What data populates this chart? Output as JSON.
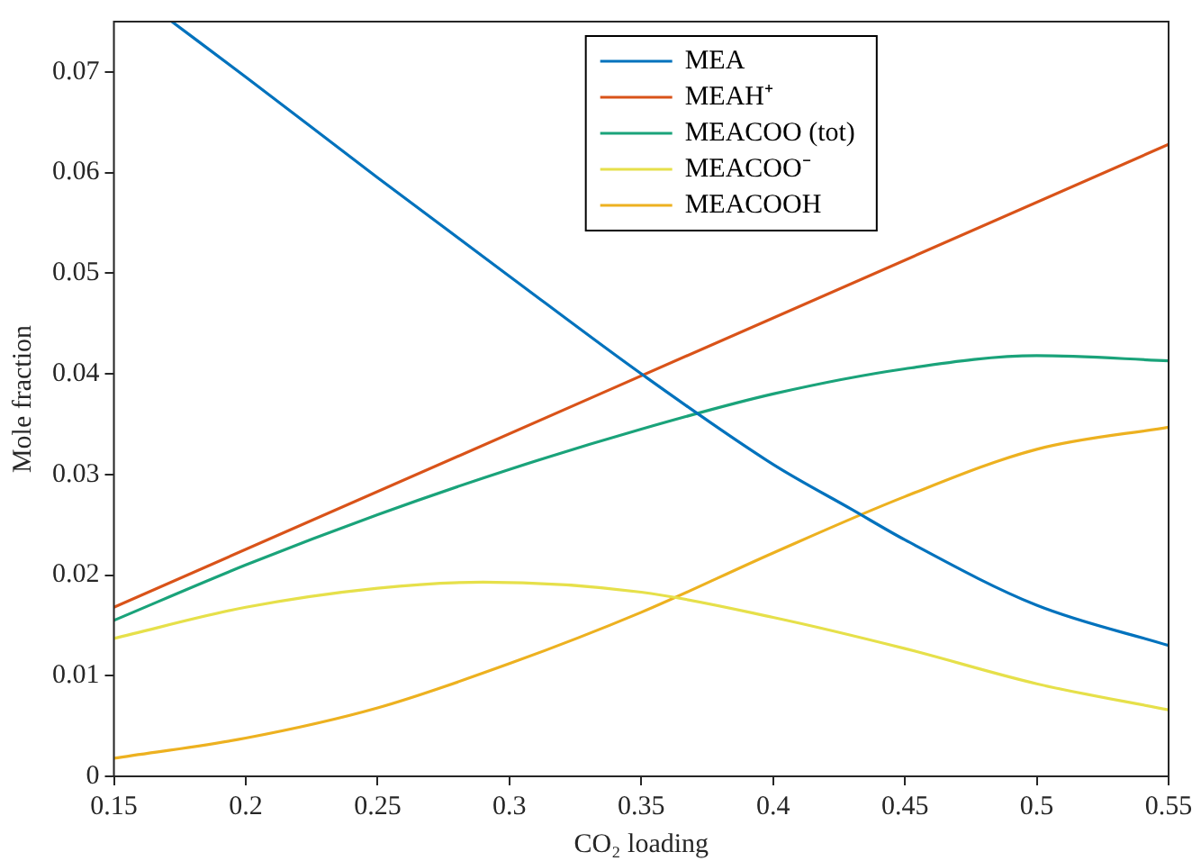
{
  "chart_data": {
    "type": "line",
    "xlabel": "CO₂ loading",
    "ylabel": "Mole fraction",
    "xlim": [
      0.15,
      0.55
    ],
    "xticks": [
      0.15,
      0.2,
      0.25,
      0.3,
      0.35,
      0.4,
      0.45,
      0.5,
      0.55
    ],
    "ylim": [
      0,
      0.075
    ],
    "yticks": [
      0,
      0.01,
      0.02,
      0.03,
      0.04,
      0.05,
      0.06,
      0.07
    ],
    "grid": false,
    "legend": "top",
    "marker": "none",
    "line_style": "solid",
    "series": [
      {
        "name": "MEA",
        "color": "#0072bd",
        "x": [
          0.172,
          0.2,
          0.25,
          0.3,
          0.35,
          0.4,
          0.43,
          0.45,
          0.5,
          0.55
        ],
        "values": [
          0.075,
          0.0695,
          0.0595,
          0.0497,
          0.04,
          0.031,
          0.0265,
          0.0235,
          0.017,
          0.013
        ]
      },
      {
        "name": "MEAH⁺",
        "color": "#d95319",
        "x": [
          0.15,
          0.55
        ],
        "values": [
          0.0168,
          0.0628
        ]
      },
      {
        "name": "MEACOO (tot)",
        "color": "#1aa37a",
        "x": [
          0.15,
          0.2,
          0.25,
          0.3,
          0.35,
          0.4,
          0.45,
          0.5,
          0.55
        ],
        "values": [
          0.0155,
          0.021,
          0.026,
          0.0305,
          0.0345,
          0.038,
          0.0405,
          0.0418,
          0.0413
        ]
      },
      {
        "name": "MEACOO⁻",
        "color": "#e6e04a",
        "x": [
          0.15,
          0.2,
          0.25,
          0.29,
          0.35,
          0.4,
          0.45,
          0.5,
          0.55
        ],
        "values": [
          0.0137,
          0.0168,
          0.0187,
          0.0193,
          0.0183,
          0.0158,
          0.0127,
          0.0092,
          0.0066
        ]
      },
      {
        "name": "MEACOOH",
        "color": "#edb120",
        "x": [
          0.15,
          0.2,
          0.25,
          0.3,
          0.35,
          0.4,
          0.45,
          0.5,
          0.55
        ],
        "values": [
          0.0018,
          0.0038,
          0.0068,
          0.0112,
          0.0163,
          0.0222,
          0.0278,
          0.0325,
          0.0347
        ]
      }
    ]
  }
}
